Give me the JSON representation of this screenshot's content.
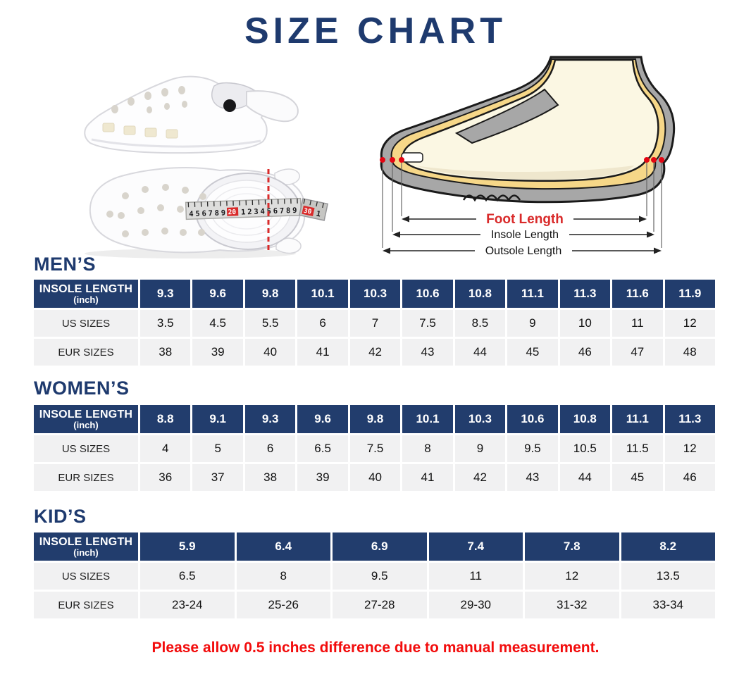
{
  "page": {
    "title": "SIZE CHART",
    "footer_note": "Please allow 0.5 inches difference due to manual measurement."
  },
  "colors": {
    "navy": "#1e3a6e",
    "table_navy": "#223d6d",
    "red": "#f20c0c",
    "diagram_red": "#d92a2a",
    "row_bg": "#f1f1f2"
  },
  "diagram": {
    "foot_length_label": "Foot Length",
    "insole_length_label": "Insole Length",
    "outsole_length_label": "Outsole Length"
  },
  "tape": {
    "segment1": "456789",
    "mark_20": "20",
    "segment2": "123456789",
    "mark_30": "30",
    "segment3": "1"
  },
  "tables": {
    "mens": {
      "heading": "MEN’S",
      "corner_line1": "INSOLE LENGTH",
      "corner_line2": "(inch)",
      "insole": [
        "9.3",
        "9.6",
        "9.8",
        "10.1",
        "10.3",
        "10.6",
        "10.8",
        "11.1",
        "11.3",
        "11.6",
        "11.9"
      ],
      "rows": [
        {
          "label": "US SIZES",
          "values": [
            "3.5",
            "4.5",
            "5.5",
            "6",
            "7",
            "7.5",
            "8.5",
            "9",
            "10",
            "11",
            "12"
          ]
        },
        {
          "label": "EUR SIZES",
          "values": [
            "38",
            "39",
            "40",
            "41",
            "42",
            "43",
            "44",
            "45",
            "46",
            "47",
            "48"
          ]
        }
      ]
    },
    "womens": {
      "heading": "WOMEN’S",
      "corner_line1": "INSOLE LENGTH",
      "corner_line2": "(inch)",
      "insole": [
        "8.8",
        "9.1",
        "9.3",
        "9.6",
        "9.8",
        "10.1",
        "10.3",
        "10.6",
        "10.8",
        "11.1",
        "11.3"
      ],
      "rows": [
        {
          "label": "US SIZES",
          "values": [
            "4",
            "5",
            "6",
            "6.5",
            "7.5",
            "8",
            "9",
            "9.5",
            "10.5",
            "11.5",
            "12"
          ]
        },
        {
          "label": "EUR SIZES",
          "values": [
            "36",
            "37",
            "38",
            "39",
            "40",
            "41",
            "42",
            "43",
            "44",
            "45",
            "46"
          ]
        }
      ]
    },
    "kids": {
      "heading": "KID’S",
      "corner_line1": "INSOLE LENGTH",
      "corner_line2": "(inch)",
      "insole": [
        "5.9",
        "6.4",
        "6.9",
        "7.4",
        "7.8",
        "8.2"
      ],
      "rows": [
        {
          "label": "US SIZES",
          "values": [
            "6.5",
            "8",
            "9.5",
            "11",
            "12",
            "13.5"
          ]
        },
        {
          "label": "EUR SIZES",
          "values": [
            "23-24",
            "25-26",
            "27-28",
            "29-30",
            "31-32",
            "33-34"
          ]
        }
      ]
    }
  }
}
